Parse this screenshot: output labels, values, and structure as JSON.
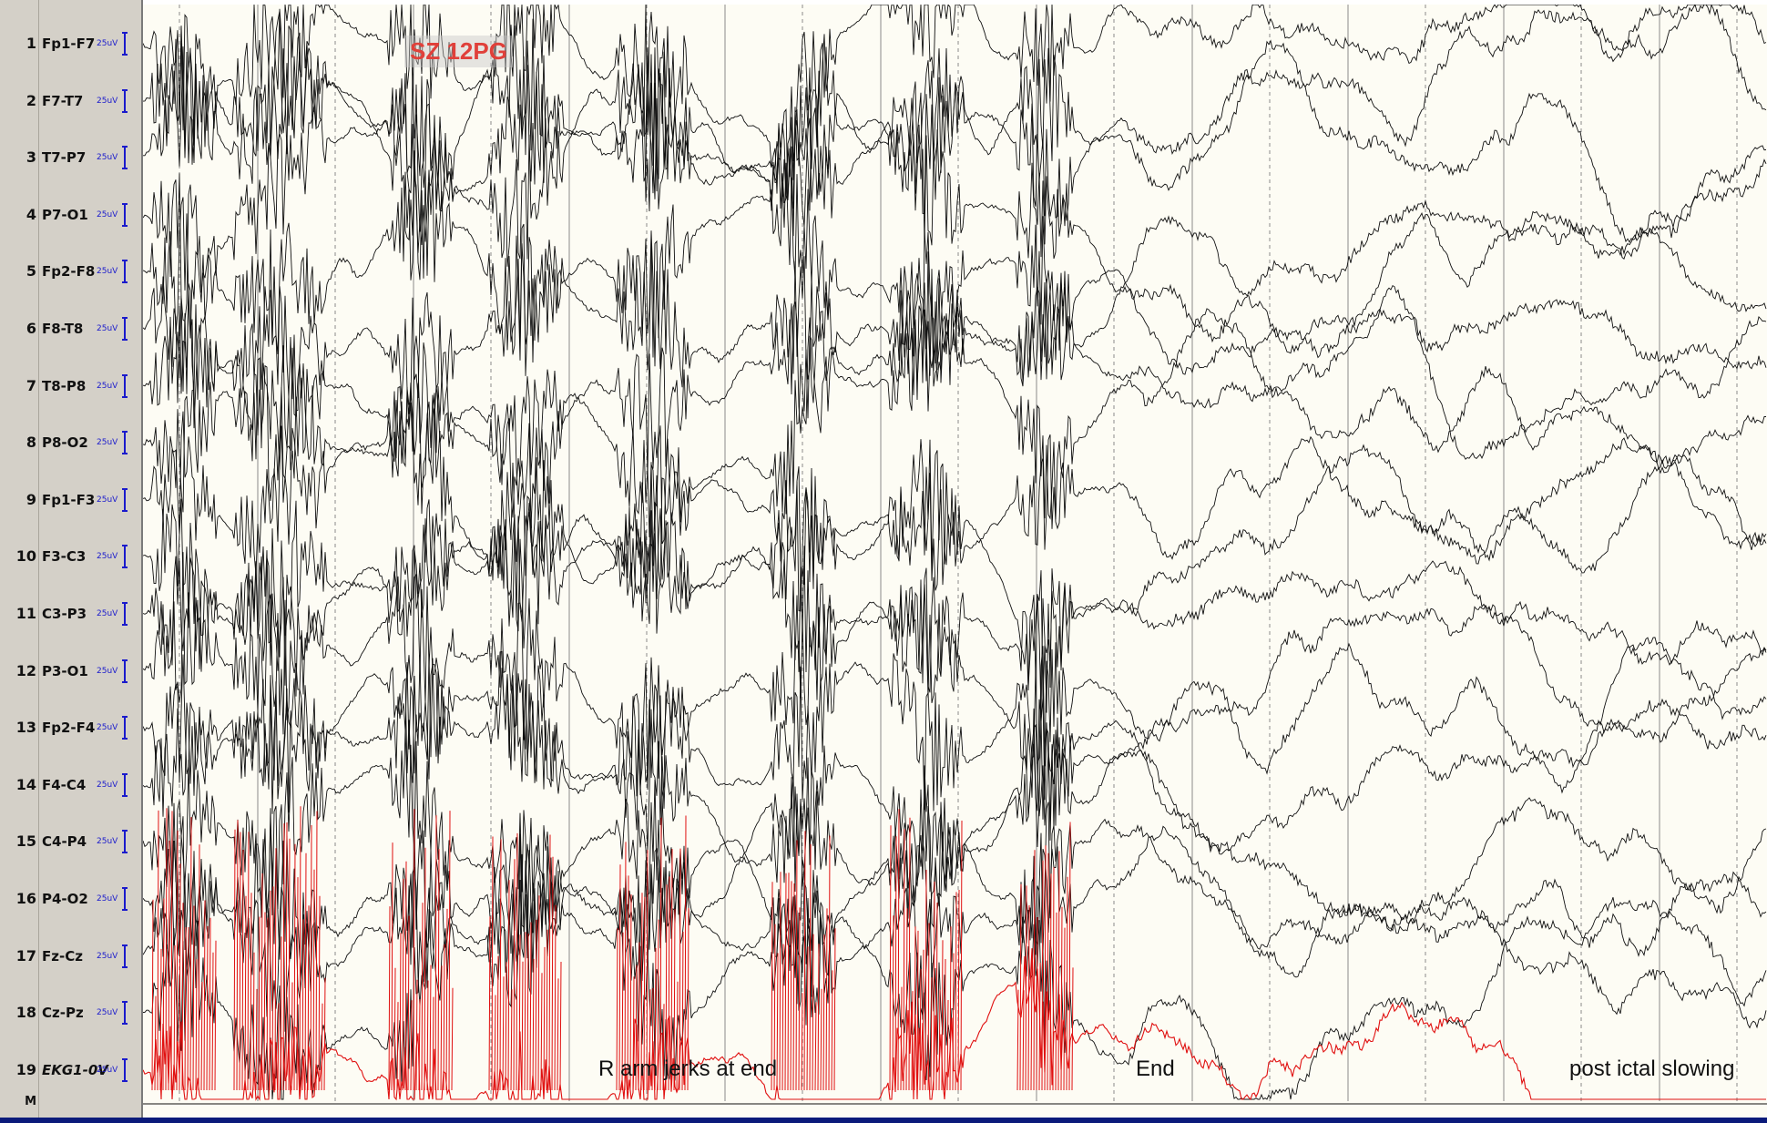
{
  "window": {
    "bottom_bar_color": "#0a1a7a"
  },
  "event_label": "SZ 12PG",
  "channels": [
    {
      "num": "1",
      "label": "Fp1-F7",
      "scale": "25uV"
    },
    {
      "num": "2",
      "label": "F7-T7",
      "scale": "25uV"
    },
    {
      "num": "3",
      "label": "T7-P7",
      "scale": "25uV"
    },
    {
      "num": "4",
      "label": "P7-O1",
      "scale": "25uV"
    },
    {
      "num": "5",
      "label": "Fp2-F8",
      "scale": "25uV"
    },
    {
      "num": "6",
      "label": "F8-T8",
      "scale": "25uV"
    },
    {
      "num": "7",
      "label": "T8-P8",
      "scale": "25uV"
    },
    {
      "num": "8",
      "label": "P8-O2",
      "scale": "25uV"
    },
    {
      "num": "9",
      "label": "Fp1-F3",
      "scale": "25uV"
    },
    {
      "num": "10",
      "label": "F3-C3",
      "scale": "25uV"
    },
    {
      "num": "11",
      "label": "C3-P3",
      "scale": "25uV"
    },
    {
      "num": "12",
      "label": "P3-O1",
      "scale": "25uV"
    },
    {
      "num": "13",
      "label": "Fp2-F4",
      "scale": "25uV"
    },
    {
      "num": "14",
      "label": "F4-C4",
      "scale": "25uV"
    },
    {
      "num": "15",
      "label": "C4-P4",
      "scale": "25uV"
    },
    {
      "num": "16",
      "label": "P4-O2",
      "scale": "25uV"
    },
    {
      "num": "17",
      "label": "Fz-Cz",
      "scale": "25uV"
    },
    {
      "num": "18",
      "label": "Cz-Pz",
      "scale": "25uV"
    },
    {
      "num": "19",
      "label": "EKG1-0V",
      "scale": "25uV"
    }
  ],
  "marker_row_label": "M",
  "annotations": {
    "arm_jerks": "R arm jerks at end",
    "end": "End",
    "postictal": "post ictal slowing"
  },
  "colors": {
    "trace": "#111111",
    "ekg_trace": "#e01010",
    "scale": "#1a1acc",
    "background": "#fdfcf4",
    "grid": "#8a8a8a"
  }
}
